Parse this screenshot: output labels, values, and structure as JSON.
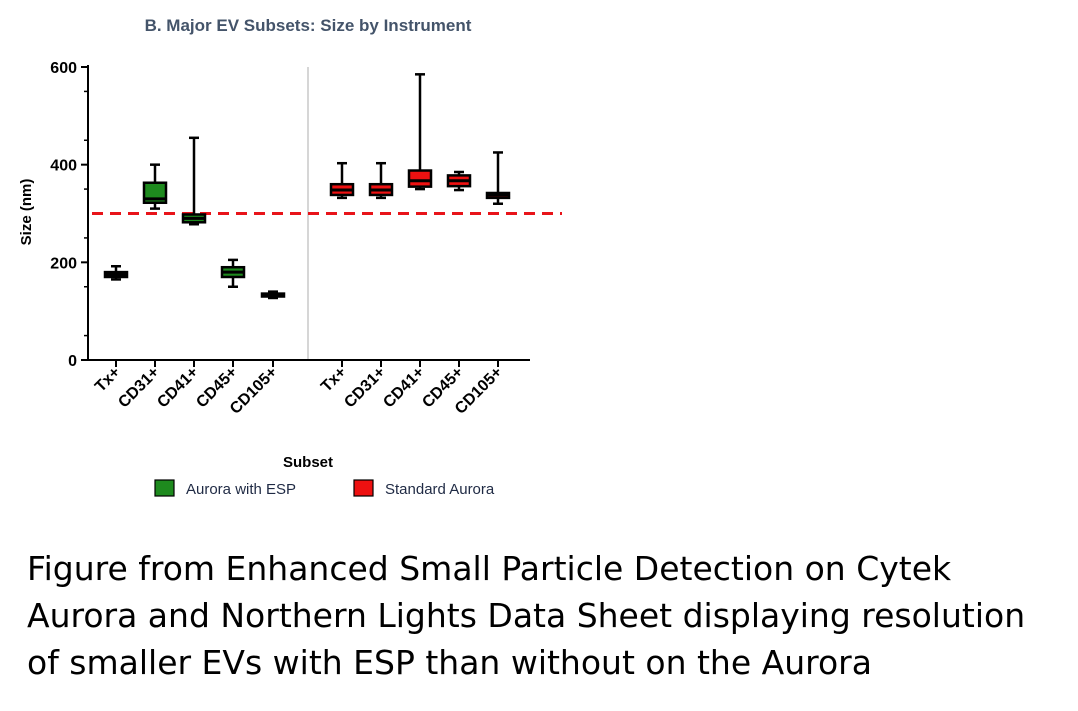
{
  "chart_data": {
    "type": "box",
    "title": "B. Major EV Subsets: Size by Instrument",
    "xlabel": "Subset",
    "ylabel": "Size (nm)",
    "ylim": [
      0,
      600
    ],
    "yticks": [
      0,
      200,
      400,
      600
    ],
    "reference_line": {
      "y": 300,
      "style": "dashed",
      "color": "#e8141a"
    },
    "groups": [
      {
        "name": "Aurora with ESP",
        "color": "#1e8a1e",
        "boxes": [
          {
            "category": "Tx+",
            "min": 165,
            "q1": 170,
            "median": 175,
            "q3": 180,
            "max": 192
          },
          {
            "category": "CD31+",
            "min": 310,
            "q1": 322,
            "median": 330,
            "q3": 363,
            "max": 400
          },
          {
            "category": "CD41+",
            "min": 278,
            "q1": 282,
            "median": 290,
            "q3": 298,
            "max": 455
          },
          {
            "category": "CD45+",
            "min": 150,
            "q1": 170,
            "median": 180,
            "q3": 190,
            "max": 205
          },
          {
            "category": "CD105+",
            "min": 127,
            "q1": 130,
            "median": 133,
            "q3": 136,
            "max": 140
          }
        ]
      },
      {
        "name": "Standard Aurora",
        "color": "#ee1111",
        "boxes": [
          {
            "category": "Tx+",
            "min": 332,
            "q1": 338,
            "median": 348,
            "q3": 360,
            "max": 403
          },
          {
            "category": "CD31+",
            "min": 332,
            "q1": 338,
            "median": 348,
            "q3": 360,
            "max": 403
          },
          {
            "category": "CD41+",
            "min": 350,
            "q1": 355,
            "median": 367,
            "q3": 388,
            "max": 585
          },
          {
            "category": "CD45+",
            "min": 348,
            "q1": 356,
            "median": 367,
            "q3": 378,
            "max": 385
          },
          {
            "category": "CD105+",
            "min": 320,
            "q1": 332,
            "median": 338,
            "q3": 342,
            "max": 425
          }
        ]
      }
    ],
    "legend": [
      {
        "label": "Aurora with ESP",
        "color": "#1e8a1e"
      },
      {
        "label": "Standard Aurora",
        "color": "#ee1111"
      }
    ],
    "legend_position": "bottom"
  },
  "caption": {
    "lines": [
      "Figure from Enhanced Small Particle Detection on Cytek",
      "Aurora and Northern Lights Data Sheet displaying resolution",
      "of smaller EVs with ESP than without on the Aurora"
    ]
  }
}
